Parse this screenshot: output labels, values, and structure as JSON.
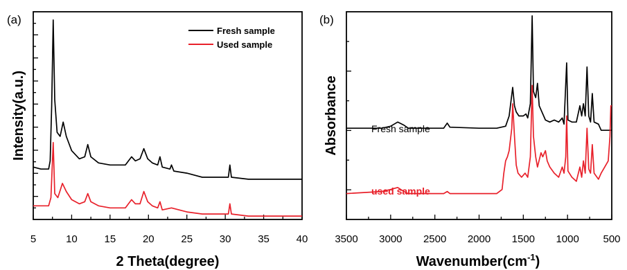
{
  "chart_data": [
    {
      "type": "line",
      "panel_label": "(a)",
      "xlabel": "2 Theta(degree)",
      "ylabel": "Intensity(a.u.)",
      "xlim": [
        5,
        40
      ],
      "ylim": [
        0,
        1
      ],
      "x_ticks": [
        "5",
        "10",
        "15",
        "20",
        "25",
        "30",
        "35",
        "40"
      ],
      "y_tick_labels_shown": false,
      "legend_position": "top-right",
      "series": [
        {
          "name": "Fresh sample",
          "color": "#000000",
          "points": [
            [
              5,
              0.25
            ],
            [
              6,
              0.24
            ],
            [
              7,
              0.24
            ],
            [
              7.2,
              0.28
            ],
            [
              7.4,
              0.55
            ],
            [
              7.6,
              0.97
            ],
            [
              7.8,
              0.58
            ],
            [
              8.1,
              0.42
            ],
            [
              8.5,
              0.4
            ],
            [
              8.9,
              0.47
            ],
            [
              9.3,
              0.4
            ],
            [
              10,
              0.33
            ],
            [
              11,
              0.29
            ],
            [
              11.7,
              0.3
            ],
            [
              12.1,
              0.36
            ],
            [
              12.5,
              0.3
            ],
            [
              13.5,
              0.27
            ],
            [
              15,
              0.26
            ],
            [
              17,
              0.26
            ],
            [
              17.8,
              0.3
            ],
            [
              18.3,
              0.28
            ],
            [
              18.9,
              0.29
            ],
            [
              19.4,
              0.34
            ],
            [
              19.9,
              0.29
            ],
            [
              20.5,
              0.27
            ],
            [
              21.2,
              0.26
            ],
            [
              21.5,
              0.3
            ],
            [
              21.8,
              0.25
            ],
            [
              22.8,
              0.24
            ],
            [
              23,
              0.26
            ],
            [
              23.3,
              0.23
            ],
            [
              25,
              0.22
            ],
            [
              27,
              0.2
            ],
            [
              29,
              0.2
            ],
            [
              30.4,
              0.2
            ],
            [
              30.6,
              0.26
            ],
            [
              30.8,
              0.2
            ],
            [
              33,
              0.19
            ],
            [
              36,
              0.19
            ],
            [
              40,
              0.19
            ]
          ]
        },
        {
          "name": "Used sample",
          "color": "#e8202a",
          "points": [
            [
              5,
              0.06
            ],
            [
              6,
              0.06
            ],
            [
              7,
              0.06
            ],
            [
              7.3,
              0.1
            ],
            [
              7.6,
              0.37
            ],
            [
              7.8,
              0.12
            ],
            [
              8.2,
              0.1
            ],
            [
              8.8,
              0.17
            ],
            [
              9.3,
              0.13
            ],
            [
              10,
              0.09
            ],
            [
              11,
              0.07
            ],
            [
              11.7,
              0.08
            ],
            [
              12.1,
              0.12
            ],
            [
              12.5,
              0.08
            ],
            [
              13.5,
              0.06
            ],
            [
              15,
              0.05
            ],
            [
              17,
              0.05
            ],
            [
              17.8,
              0.09
            ],
            [
              18.3,
              0.07
            ],
            [
              18.9,
              0.07
            ],
            [
              19.4,
              0.13
            ],
            [
              19.9,
              0.08
            ],
            [
              20.5,
              0.06
            ],
            [
              21.2,
              0.05
            ],
            [
              21.5,
              0.08
            ],
            [
              21.8,
              0.04
            ],
            [
              23,
              0.05
            ],
            [
              25,
              0.03
            ],
            [
              27,
              0.02
            ],
            [
              29,
              0.02
            ],
            [
              30.4,
              0.02
            ],
            [
              30.6,
              0.07
            ],
            [
              30.8,
              0.02
            ],
            [
              33,
              0.01
            ],
            [
              36,
              0.01
            ],
            [
              40,
              0.01
            ]
          ]
        }
      ]
    },
    {
      "type": "line",
      "panel_label": "(b)",
      "xlabel": "Wavenumber(cm",
      "xlabel_superscript": "-1",
      "xlabel_close": ")",
      "ylabel": "Absorbance",
      "xlim": [
        3500,
        500
      ],
      "x_reversed": true,
      "ylim": [
        0,
        1
      ],
      "x_ticks": [
        "3500",
        "3000",
        "2500",
        "2000",
        "1500",
        "1000",
        "500"
      ],
      "y_tick_labels_shown": false,
      "series": [
        {
          "name": "Fresh sample",
          "color": "#000000",
          "points": [
            [
              3500,
              0.44
            ],
            [
              3100,
              0.44
            ],
            [
              3000,
              0.45
            ],
            [
              2920,
              0.47
            ],
            [
              2850,
              0.455
            ],
            [
              2800,
              0.44
            ],
            [
              2400,
              0.44
            ],
            [
              2360,
              0.465
            ],
            [
              2330,
              0.445
            ],
            [
              2000,
              0.44
            ],
            [
              1800,
              0.44
            ],
            [
              1700,
              0.45
            ],
            [
              1660,
              0.5
            ],
            [
              1620,
              0.64
            ],
            [
              1600,
              0.55
            ],
            [
              1580,
              0.52
            ],
            [
              1550,
              0.5
            ],
            [
              1500,
              0.5
            ],
            [
              1470,
              0.51
            ],
            [
              1450,
              0.49
            ],
            [
              1420,
              0.56
            ],
            [
              1400,
              0.99
            ],
            [
              1385,
              0.62
            ],
            [
              1360,
              0.59
            ],
            [
              1340,
              0.66
            ],
            [
              1320,
              0.55
            ],
            [
              1250,
              0.48
            ],
            [
              1200,
              0.47
            ],
            [
              1150,
              0.48
            ],
            [
              1100,
              0.47
            ],
            [
              1060,
              0.49
            ],
            [
              1040,
              0.46
            ],
            [
              1010,
              0.76
            ],
            [
              995,
              0.48
            ],
            [
              950,
              0.47
            ],
            [
              900,
              0.47
            ],
            [
              860,
              0.55
            ],
            [
              840,
              0.5
            ],
            [
              820,
              0.56
            ],
            [
              800,
              0.5
            ],
            [
              780,
              0.74
            ],
            [
              760,
              0.5
            ],
            [
              740,
              0.47
            ],
            [
              720,
              0.61
            ],
            [
              700,
              0.47
            ],
            [
              650,
              0.46
            ],
            [
              620,
              0.43
            ],
            [
              500,
              0.43
            ]
          ]
        },
        {
          "name": "used sample",
          "color": "#e8202a",
          "points": [
            [
              3500,
              0.12
            ],
            [
              3100,
              0.13
            ],
            [
              3000,
              0.14
            ],
            [
              2920,
              0.15
            ],
            [
              2850,
              0.13
            ],
            [
              2800,
              0.12
            ],
            [
              2400,
              0.12
            ],
            [
              2360,
              0.13
            ],
            [
              2330,
              0.12
            ],
            [
              2000,
              0.12
            ],
            [
              1800,
              0.12
            ],
            [
              1740,
              0.14
            ],
            [
              1720,
              0.22
            ],
            [
              1700,
              0.28
            ],
            [
              1680,
              0.3
            ],
            [
              1660,
              0.33
            ],
            [
              1630,
              0.44
            ],
            [
              1620,
              0.56
            ],
            [
              1600,
              0.4
            ],
            [
              1580,
              0.26
            ],
            [
              1560,
              0.22
            ],
            [
              1520,
              0.2
            ],
            [
              1480,
              0.22
            ],
            [
              1450,
              0.2
            ],
            [
              1420,
              0.3
            ],
            [
              1400,
              0.65
            ],
            [
              1385,
              0.4
            ],
            [
              1360,
              0.3
            ],
            [
              1340,
              0.25
            ],
            [
              1300,
              0.32
            ],
            [
              1280,
              0.3
            ],
            [
              1250,
              0.33
            ],
            [
              1230,
              0.28
            ],
            [
              1200,
              0.25
            ],
            [
              1150,
              0.22
            ],
            [
              1100,
              0.2
            ],
            [
              1060,
              0.25
            ],
            [
              1040,
              0.22
            ],
            [
              1020,
              0.3
            ],
            [
              1010,
              0.5
            ],
            [
              995,
              0.23
            ],
            [
              950,
              0.2
            ],
            [
              900,
              0.18
            ],
            [
              860,
              0.25
            ],
            [
              840,
              0.2
            ],
            [
              820,
              0.28
            ],
            [
              800,
              0.22
            ],
            [
              780,
              0.44
            ],
            [
              760,
              0.24
            ],
            [
              740,
              0.22
            ],
            [
              720,
              0.36
            ],
            [
              700,
              0.22
            ],
            [
              650,
              0.19
            ],
            [
              620,
              0.22
            ],
            [
              580,
              0.25
            ],
            [
              540,
              0.28
            ],
            [
              520,
              0.4
            ],
            [
              510,
              0.55
            ],
            [
              500,
              0.55
            ]
          ]
        }
      ]
    }
  ]
}
